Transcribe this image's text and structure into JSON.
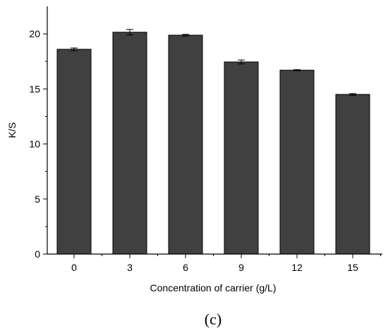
{
  "chart_data": {
    "type": "bar",
    "categories": [
      "0",
      "3",
      "6",
      "9",
      "12",
      "15"
    ],
    "values": [
      18.6,
      20.15,
      19.88,
      17.45,
      16.7,
      14.5
    ],
    "errors": [
      0.12,
      0.25,
      0.08,
      0.18,
      0.05,
      0.08
    ],
    "xlabel": "Concentration of carrier (g/L)",
    "ylabel": "K/S",
    "ylim": [
      0,
      22.5
    ],
    "yticks": [
      "0",
      "5",
      "10",
      "15",
      "20"
    ],
    "grid": false,
    "bar_color": "#404040"
  },
  "panel_label": "(c)"
}
